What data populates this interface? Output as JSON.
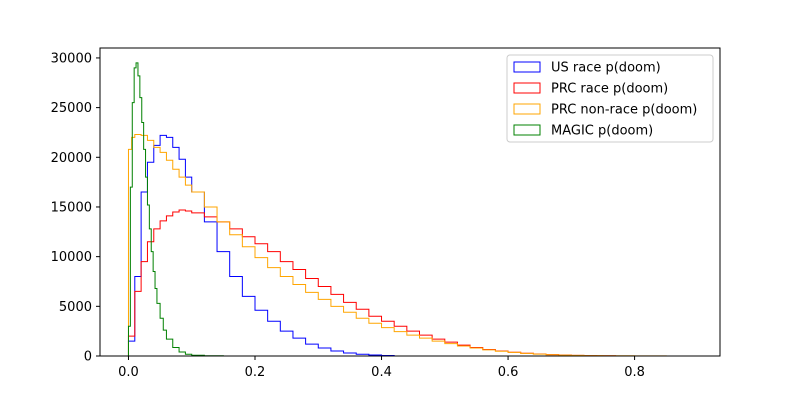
{
  "chart_data": {
    "type": "histogram-step",
    "title": "",
    "xlabel": "",
    "ylabel": "",
    "xlim": [
      -0.045,
      0.935
    ],
    "ylim": [
      0,
      31000
    ],
    "x_ticks": [
      0.0,
      0.2,
      0.4,
      0.6,
      0.8
    ],
    "x_tick_labels": [
      "0.0",
      "0.2",
      "0.4",
      "0.6",
      "0.8"
    ],
    "y_ticks": [
      0,
      5000,
      10000,
      15000,
      20000,
      25000,
      30000
    ],
    "y_tick_labels": [
      "0",
      "5000",
      "10000",
      "15000",
      "20000",
      "25000",
      "30000"
    ],
    "grid": false,
    "legend_position": "upper-right",
    "series": [
      {
        "name": "US race p(doom)",
        "color": "#0000ff",
        "x": [
          0.0,
          0.01,
          0.02,
          0.03,
          0.04,
          0.05,
          0.06,
          0.07,
          0.08,
          0.09,
          0.1,
          0.12,
          0.14,
          0.16,
          0.18,
          0.2,
          0.22,
          0.24,
          0.26,
          0.28,
          0.3,
          0.32,
          0.34,
          0.36,
          0.38,
          0.4,
          0.42
        ],
        "y": [
          1500,
          8000,
          16500,
          19500,
          21200,
          22200,
          22000,
          21000,
          19800,
          18000,
          16500,
          13500,
          10500,
          8000,
          6000,
          4600,
          3500,
          2500,
          1800,
          1200,
          800,
          500,
          300,
          180,
          100,
          50,
          0
        ]
      },
      {
        "name": "PRC race p(doom)",
        "color": "#ff0000",
        "x": [
          0.0,
          0.01,
          0.02,
          0.03,
          0.04,
          0.05,
          0.06,
          0.07,
          0.08,
          0.09,
          0.1,
          0.12,
          0.14,
          0.16,
          0.18,
          0.2,
          0.22,
          0.24,
          0.26,
          0.28,
          0.3,
          0.32,
          0.34,
          0.36,
          0.38,
          0.4,
          0.42,
          0.44,
          0.46,
          0.48,
          0.5,
          0.52,
          0.54,
          0.56,
          0.58,
          0.6,
          0.62,
          0.64,
          0.66,
          0.68,
          0.7,
          0.72,
          0.74,
          0.77
        ],
        "y": [
          2000,
          6500,
          9500,
          11500,
          12800,
          13600,
          14100,
          14500,
          14700,
          14600,
          14400,
          14000,
          13500,
          12800,
          12000,
          11300,
          10500,
          9500,
          8700,
          7800,
          7000,
          6200,
          5400,
          4700,
          4000,
          3500,
          3000,
          2500,
          2100,
          1700,
          1400,
          1100,
          850,
          650,
          500,
          380,
          280,
          200,
          140,
          100,
          60,
          40,
          20,
          0
        ]
      },
      {
        "name": "PRC non-race p(doom)",
        "color": "#ffa500",
        "x": [
          0.0,
          0.005,
          0.01,
          0.02,
          0.03,
          0.04,
          0.05,
          0.06,
          0.07,
          0.08,
          0.09,
          0.1,
          0.12,
          0.14,
          0.16,
          0.18,
          0.2,
          0.22,
          0.24,
          0.26,
          0.28,
          0.3,
          0.32,
          0.34,
          0.36,
          0.38,
          0.4,
          0.42,
          0.44,
          0.46,
          0.48,
          0.5,
          0.52,
          0.54,
          0.56,
          0.58,
          0.6,
          0.62,
          0.64,
          0.66,
          0.68,
          0.7,
          0.72,
          0.75,
          0.8,
          0.85,
          0.89
        ],
        "y": [
          20800,
          22000,
          22300,
          22200,
          21700,
          21000,
          20500,
          19700,
          18800,
          18000,
          17200,
          16500,
          15000,
          13500,
          12200,
          11000,
          9900,
          8900,
          8000,
          7200,
          6400,
          5700,
          5000,
          4400,
          3800,
          3300,
          2850,
          2450,
          2100,
          1800,
          1500,
          1250,
          1000,
          800,
          620,
          480,
          360,
          260,
          190,
          130,
          90,
          60,
          40,
          25,
          10,
          5,
          0
        ]
      },
      {
        "name": "MAGIC p(doom)",
        "color": "#008000",
        "x": [
          0.0,
          0.003,
          0.006,
          0.009,
          0.012,
          0.015,
          0.018,
          0.021,
          0.024,
          0.027,
          0.03,
          0.033,
          0.036,
          0.039,
          0.042,
          0.045,
          0.05,
          0.055,
          0.06,
          0.07,
          0.08,
          0.09,
          0.1,
          0.12,
          0.15
        ],
        "y": [
          3000,
          17000,
          25500,
          29000,
          29500,
          28200,
          26000,
          23500,
          20800,
          18000,
          15200,
          12800,
          10500,
          8500,
          6800,
          5300,
          3800,
          2600,
          1700,
          850,
          400,
          180,
          80,
          20,
          0
        ]
      }
    ]
  }
}
